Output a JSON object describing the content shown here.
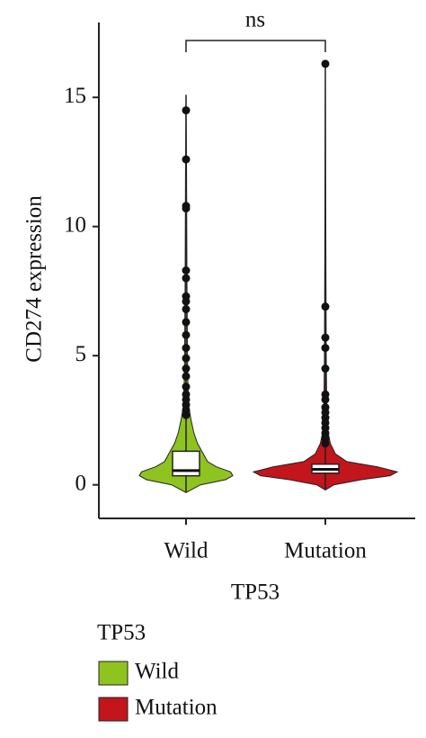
{
  "chart_data": {
    "type": "violin",
    "y_label": "CD274 expression",
    "x_label": "TP53",
    "legend_title": "TP53",
    "annotation": "ns",
    "categories": [
      "Wild",
      "Mutation"
    ],
    "ylim": [
      -1.3,
      17.9
    ],
    "yticks": [
      0,
      5,
      10,
      15
    ],
    "series": [
      {
        "name": "Wild",
        "color": "#8fc31f",
        "violin": {
          "y": [
            -0.3,
            0,
            0.2,
            0.35,
            0.5,
            0.7,
            0.9,
            1.2,
            1.6,
            2,
            2.5,
            3,
            4,
            5,
            8,
            12,
            15.1
          ],
          "density": [
            0,
            0.2,
            0.55,
            0.65,
            0.62,
            0.42,
            0.3,
            0.24,
            0.16,
            0.11,
            0.07,
            0.04,
            0.025,
            0.02,
            0.012,
            0.008,
            0
          ]
        },
        "q1": 0.35,
        "median": 0.55,
        "q3": 1.3,
        "whisker_low": -0.3,
        "whisker_high": 15.1,
        "outliers": [
          14.5,
          12.6,
          10.8,
          10.7,
          8.3,
          8.0,
          7.3,
          7.1,
          6.8,
          6.3,
          5.8,
          5.3,
          4.9,
          4.5,
          4.2,
          3.8,
          3.5,
          3.3,
          3.1,
          2.9,
          2.7
        ]
      },
      {
        "name": "Mutation",
        "color": "#c3151c",
        "violin": {
          "y": [
            -0.2,
            0,
            0.2,
            0.35,
            0.5,
            0.7,
            0.9,
            1.2,
            1.6,
            2,
            3,
            5,
            10,
            16.3
          ],
          "density": [
            0,
            0.12,
            0.5,
            0.9,
            1.0,
            0.72,
            0.3,
            0.14,
            0.07,
            0.04,
            0.02,
            0.012,
            0.006,
            0
          ]
        },
        "q1": 0.45,
        "median": 0.6,
        "q3": 0.8,
        "whisker_low": -0.2,
        "whisker_high": 16.3,
        "outliers": [
          16.3,
          6.9,
          5.7,
          5.3,
          4.5,
          3.5,
          3.3,
          3.0,
          2.8,
          2.6,
          2.4,
          2.2,
          2.0,
          1.8,
          1.6
        ]
      }
    ]
  }
}
